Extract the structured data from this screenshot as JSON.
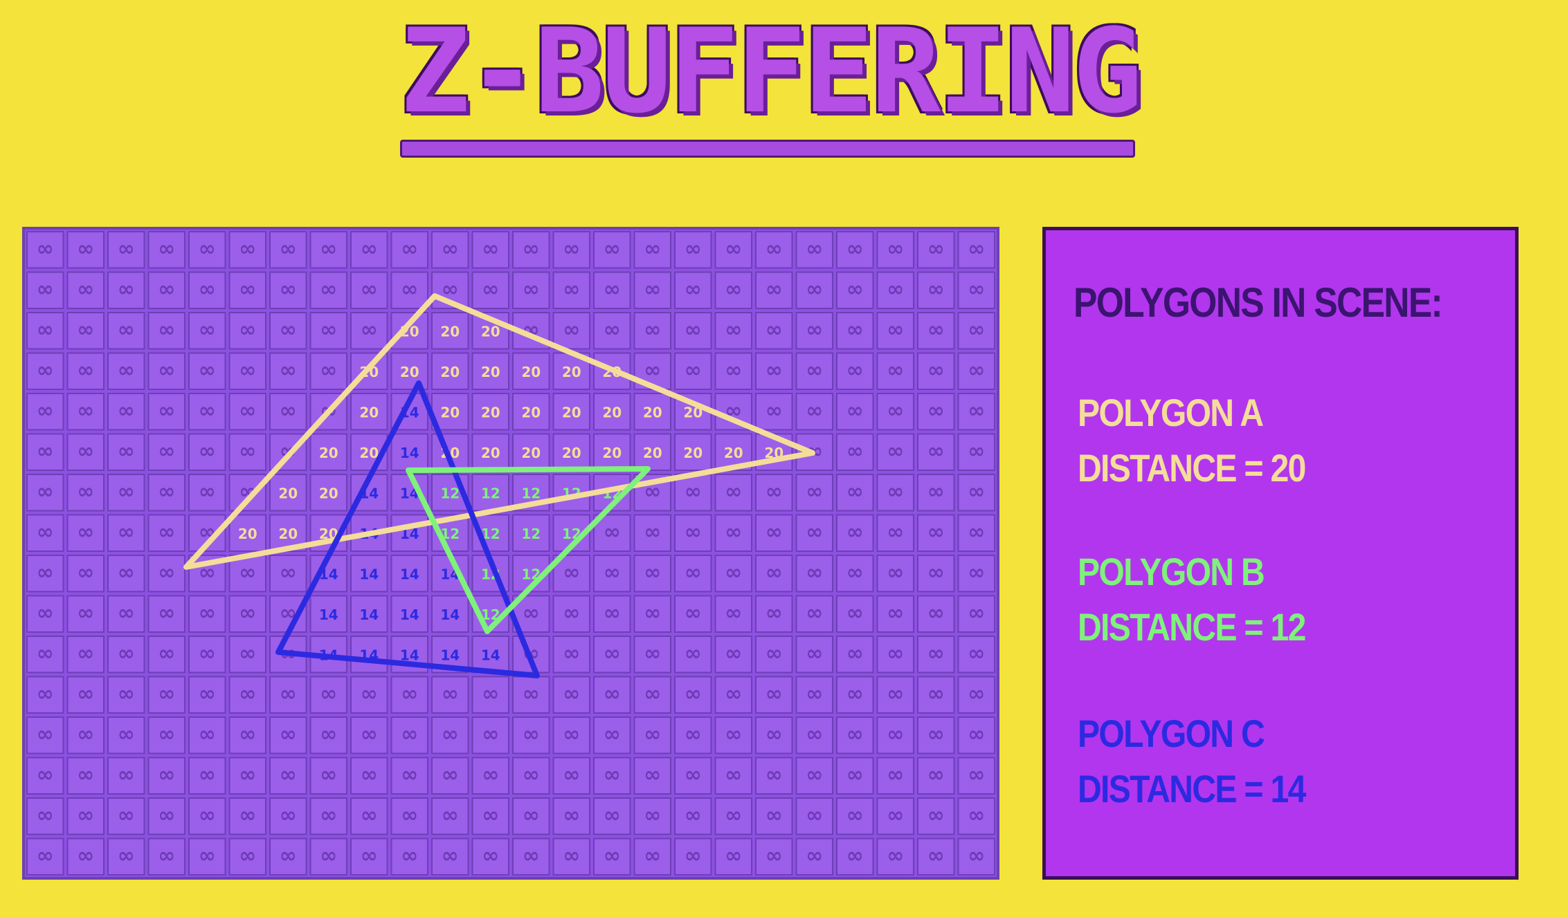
{
  "title": "Z-BUFFERING",
  "colors": {
    "background": "#f3e33a",
    "title_fill": "#b64fe6",
    "grid_bg": "#8d51e2",
    "grid_cell": "#9b5fea",
    "grid_line": "#6e3fb6",
    "infinity_text": "#6f3ab8",
    "legend_bg": "#b236ee",
    "legend_title": "#3b1470",
    "polygon_a": "#f4dd98",
    "polygon_b": "#7ef27a",
    "polygon_c": "#2c2ae0"
  },
  "grid": {
    "columns": 24,
    "rows": 16,
    "empty_value": "∞"
  },
  "legend": {
    "heading": "POLYGONS IN SCENE:",
    "polygons": [
      {
        "id": "A",
        "name": "POLYGON A",
        "distance": "DISTANCE = 20",
        "depth": 20,
        "color": "#f4dd98"
      },
      {
        "id": "B",
        "name": "POLYGON B",
        "distance": "DISTANCE = 12",
        "depth": 12,
        "color": "#7ef27a"
      },
      {
        "id": "C",
        "name": "POLYGON C",
        "distance": "DISTANCE = 14",
        "depth": 14,
        "color": "#2c2ae0"
      }
    ]
  }
}
